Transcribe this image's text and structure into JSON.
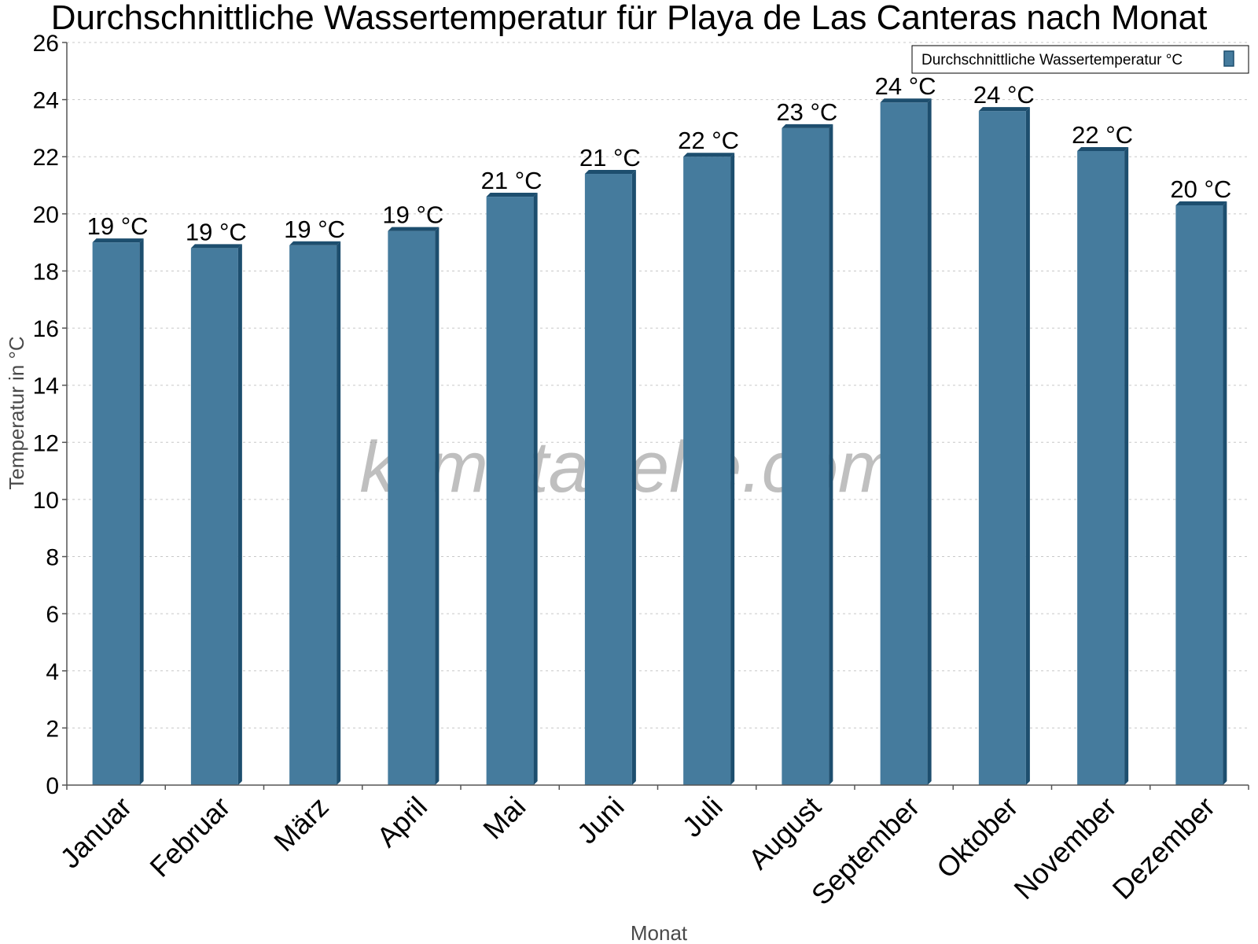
{
  "chart_data": {
    "type": "bar",
    "title": "Durchschnittliche Wassertemperatur für Playa de Las Canteras nach Monat",
    "xlabel": "Monat",
    "ylabel": "Temperatur in °C",
    "ylim": [
      0,
      26
    ],
    "yticks": [
      0,
      2,
      4,
      6,
      8,
      10,
      12,
      14,
      16,
      18,
      20,
      22,
      24,
      26
    ],
    "grid": true,
    "legend_position": "top-right",
    "categories": [
      "Januar",
      "Februar",
      "März",
      "April",
      "Mai",
      "Juni",
      "Juli",
      "August",
      "September",
      "Oktober",
      "November",
      "Dezember"
    ],
    "series": [
      {
        "name": "Durchschnittliche Wassertemperatur °C",
        "color": "#457b9d",
        "values": [
          19.0,
          18.8,
          18.9,
          19.4,
          20.6,
          21.4,
          22.0,
          23.0,
          23.9,
          23.6,
          22.2,
          20.3
        ],
        "labels": [
          "19 °C",
          "19 °C",
          "19 °C",
          "19 °C",
          "21 °C",
          "21 °C",
          "22 °C",
          "23 °C",
          "24 °C",
          "24 °C",
          "22 °C",
          "20 °C"
        ]
      }
    ],
    "watermark": "klimatabelle.com",
    "colors": {
      "bar_front": "#457b9d",
      "bar_top": "#1d4e6e",
      "bar_side": "#1d4e6e",
      "grid": "#c8c8c8",
      "axis": "#555555"
    }
  }
}
